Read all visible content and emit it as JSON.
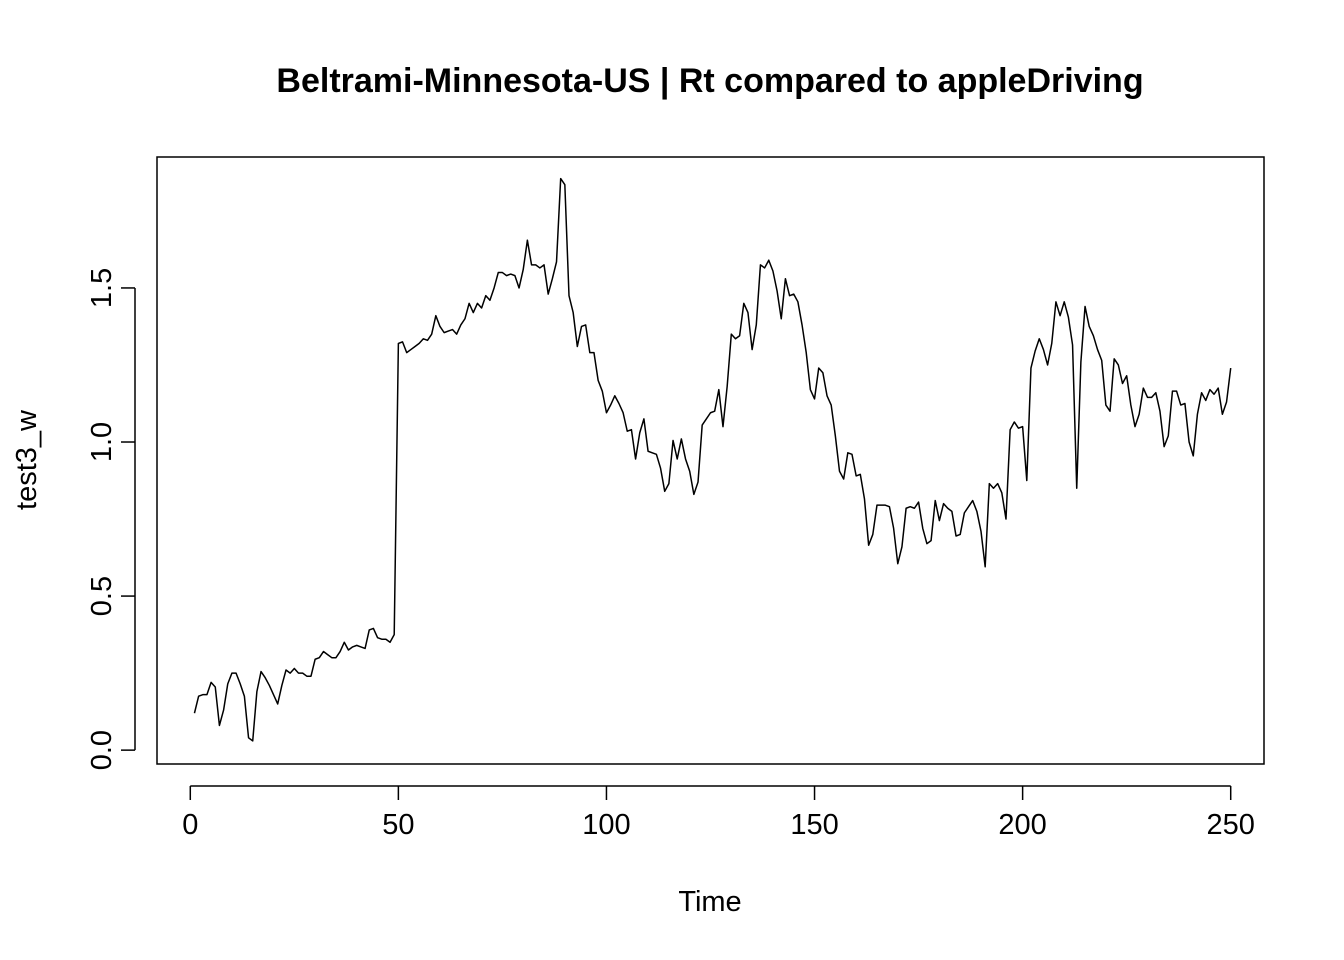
{
  "chart_data": {
    "type": "line",
    "title": "Beltrami-Minnesota-US | Rt compared to appleDriving",
    "xlabel": "Time",
    "ylabel": "test3_w",
    "xlim": [
      -8,
      258
    ],
    "ylim": [
      -0.045,
      1.925
    ],
    "xticks": [
      0,
      50,
      100,
      150,
      200,
      250
    ],
    "xtick_labels": [
      "0",
      "50",
      "100",
      "150",
      "200",
      "250"
    ],
    "yticks": [
      0.0,
      0.5,
      1.0,
      1.5
    ],
    "ytick_labels": [
      "0.0",
      "0.5",
      "1.0",
      "1.5"
    ],
    "grid": false,
    "legend": "none",
    "line_color": "#000000",
    "series": [
      {
        "x_start": 1,
        "values": [
          0.12,
          0.175,
          0.18,
          0.18,
          0.22,
          0.205,
          0.08,
          0.13,
          0.215,
          0.25,
          0.25,
          0.215,
          0.175,
          0.04,
          0.03,
          0.19,
          0.255,
          0.235,
          0.21,
          0.18,
          0.15,
          0.21,
          0.26,
          0.25,
          0.265,
          0.25,
          0.25,
          0.24,
          0.24,
          0.295,
          0.3,
          0.32,
          0.31,
          0.3,
          0.3,
          0.32,
          0.35,
          0.325,
          0.335,
          0.34,
          0.335,
          0.33,
          0.39,
          0.395,
          0.365,
          0.36,
          0.36,
          0.35,
          0.375,
          1.32,
          1.325,
          1.29,
          1.3,
          1.31,
          1.32,
          1.335,
          1.33,
          1.35,
          1.41,
          1.375,
          1.355,
          1.36,
          1.365,
          1.35,
          1.38,
          1.4,
          1.45,
          1.42,
          1.45,
          1.435,
          1.475,
          1.46,
          1.5,
          1.55,
          1.55,
          1.54,
          1.545,
          1.54,
          1.5,
          1.56,
          1.655,
          1.575,
          1.575,
          1.565,
          1.575,
          1.48,
          1.53,
          1.585,
          1.855,
          1.835,
          1.475,
          1.42,
          1.31,
          1.375,
          1.38,
          1.29,
          1.29,
          1.2,
          1.165,
          1.095,
          1.12,
          1.15,
          1.125,
          1.095,
          1.035,
          1.04,
          0.945,
          1.03,
          1.075,
          0.97,
          0.965,
          0.96,
          0.915,
          0.84,
          0.865,
          1.005,
          0.945,
          1.01,
          0.945,
          0.905,
          0.83,
          0.87,
          1.055,
          1.075,
          1.095,
          1.1,
          1.17,
          1.05,
          1.18,
          1.35,
          1.335,
          1.345,
          1.45,
          1.42,
          1.3,
          1.38,
          1.575,
          1.565,
          1.59,
          1.555,
          1.49,
          1.4,
          1.53,
          1.475,
          1.48,
          1.455,
          1.38,
          1.29,
          1.17,
          1.14,
          1.24,
          1.225,
          1.15,
          1.12,
          1.02,
          0.905,
          0.88,
          0.965,
          0.96,
          0.89,
          0.895,
          0.815,
          0.665,
          0.7,
          0.795,
          0.795,
          0.795,
          0.79,
          0.72,
          0.605,
          0.66,
          0.785,
          0.79,
          0.785,
          0.805,
          0.72,
          0.67,
          0.68,
          0.81,
          0.745,
          0.8,
          0.785,
          0.775,
          0.695,
          0.7,
          0.77,
          0.79,
          0.81,
          0.775,
          0.71,
          0.595,
          0.865,
          0.85,
          0.865,
          0.835,
          0.75,
          1.04,
          1.065,
          1.045,
          1.05,
          0.875,
          1.24,
          1.295,
          1.335,
          1.3,
          1.25,
          1.32,
          1.455,
          1.41,
          1.455,
          1.405,
          1.315,
          0.85,
          1.26,
          1.44,
          1.375,
          1.345,
          1.3,
          1.265,
          1.12,
          1.1,
          1.27,
          1.25,
          1.19,
          1.215,
          1.12,
          1.05,
          1.09,
          1.175,
          1.145,
          1.145,
          1.16,
          1.1,
          0.985,
          1.02,
          1.165,
          1.165,
          1.12,
          1.125,
          1.0,
          0.955,
          1.09,
          1.16,
          1.135,
          1.17,
          1.155,
          1.175,
          1.09,
          1.13,
          1.24
        ]
      }
    ]
  }
}
